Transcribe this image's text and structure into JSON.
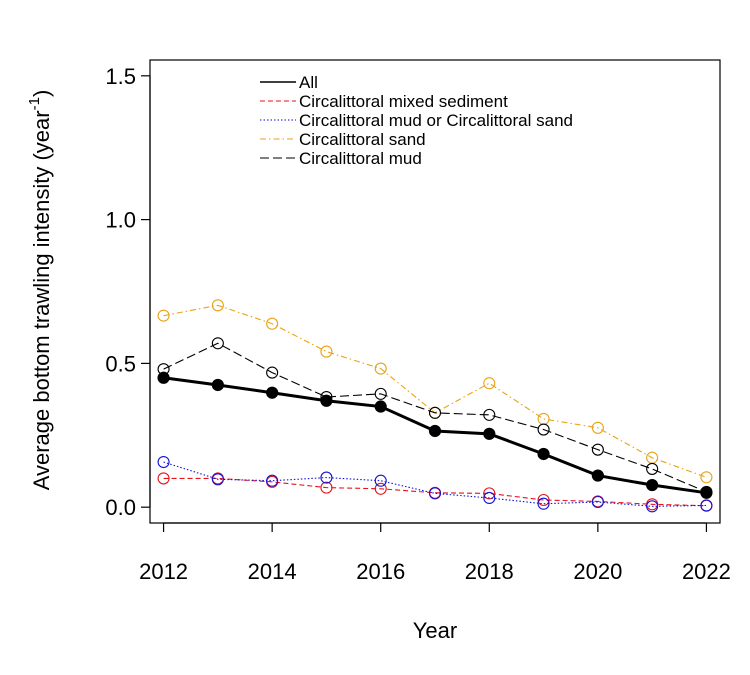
{
  "chart_data": {
    "type": "line",
    "title": "",
    "xlabel": "Year",
    "ylabel_main": "Average bottom trawling intensity (year",
    "ylabel_sup": "-1",
    "ylabel_close": ")",
    "x": [
      2012,
      2013,
      2014,
      2015,
      2016,
      2017,
      2018,
      2019,
      2020,
      2021,
      2022
    ],
    "xticks": [
      2012,
      2014,
      2016,
      2018,
      2020,
      2022
    ],
    "xtick_labels": [
      "2012",
      "2014",
      "2016",
      "2018",
      "2020",
      "2022"
    ],
    "yticks": [
      0.0,
      0.5,
      1.0,
      1.5
    ],
    "ytick_labels": [
      "0.0",
      "0.5",
      "1.0",
      "1.5"
    ],
    "xlim": [
      2011.75,
      2022.25
    ],
    "ylim": [
      -0.055,
      1.555
    ],
    "grid": false,
    "legend_position": "top",
    "series": [
      {
        "name": "All",
        "color": "#000000",
        "dash": "solid",
        "marker": "filled",
        "values": [
          0.45,
          0.425,
          0.398,
          0.37,
          0.35,
          0.265,
          0.255,
          0.185,
          0.11,
          0.077,
          0.05
        ]
      },
      {
        "name": "Circalittoral mixed sediment",
        "color": "#e8121a",
        "dash": "dashed",
        "marker": "open",
        "values": [
          0.1,
          0.1,
          0.088,
          0.068,
          0.064,
          0.05,
          0.048,
          0.025,
          0.02,
          0.01,
          0.005
        ]
      },
      {
        "name": "Circalittoral mud or Circalittoral sand",
        "color": "#1212d8",
        "dash": "dotted",
        "marker": "open",
        "values": [
          0.157,
          0.097,
          0.092,
          0.103,
          0.092,
          0.048,
          0.032,
          0.012,
          0.018,
          0.003,
          0.006
        ]
      },
      {
        "name": "Circalittoral sand",
        "color": "#e8a317",
        "dash": "dashdot",
        "marker": "open",
        "values": [
          0.666,
          0.702,
          0.638,
          0.541,
          0.482,
          0.328,
          0.431,
          0.307,
          0.276,
          0.172,
          0.104
        ]
      },
      {
        "name": "Circalittoral mud",
        "color": "#000000",
        "dash": "longdash",
        "marker": "open",
        "values": [
          0.48,
          0.57,
          0.468,
          0.383,
          0.394,
          0.328,
          0.321,
          0.27,
          0.2,
          0.133,
          0.053
        ]
      }
    ]
  }
}
